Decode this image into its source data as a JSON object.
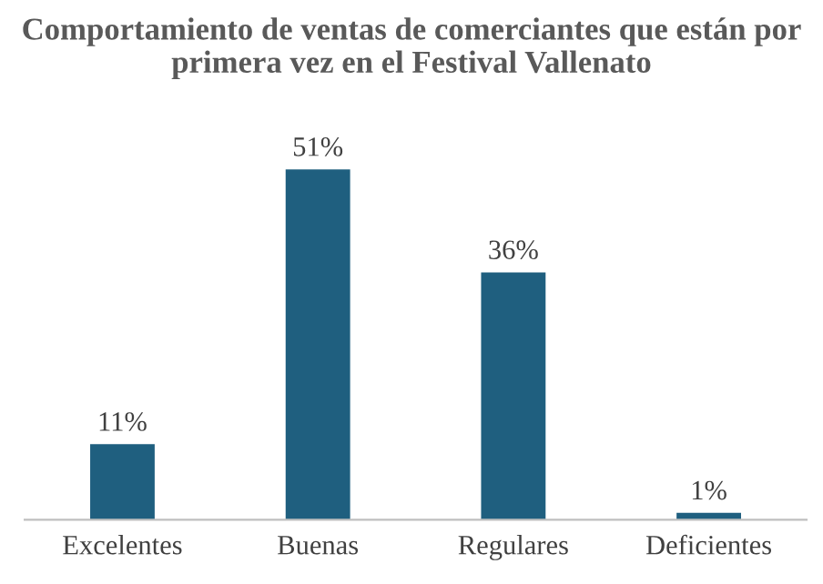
{
  "chart_data": {
    "type": "bar",
    "title": "Comportamiento de ventas de comerciantes que están por primera vez en el Festival Vallenato",
    "categories": [
      "Excelentes",
      "Buenas",
      "Regulares",
      "Deficientes"
    ],
    "values": [
      11,
      51,
      36,
      1
    ],
    "color": "#1f5f7f",
    "data_labels": true,
    "value_labels": [
      "11%",
      "51%",
      "36%",
      "1%"
    ],
    "grid": false,
    "legend": false
  }
}
